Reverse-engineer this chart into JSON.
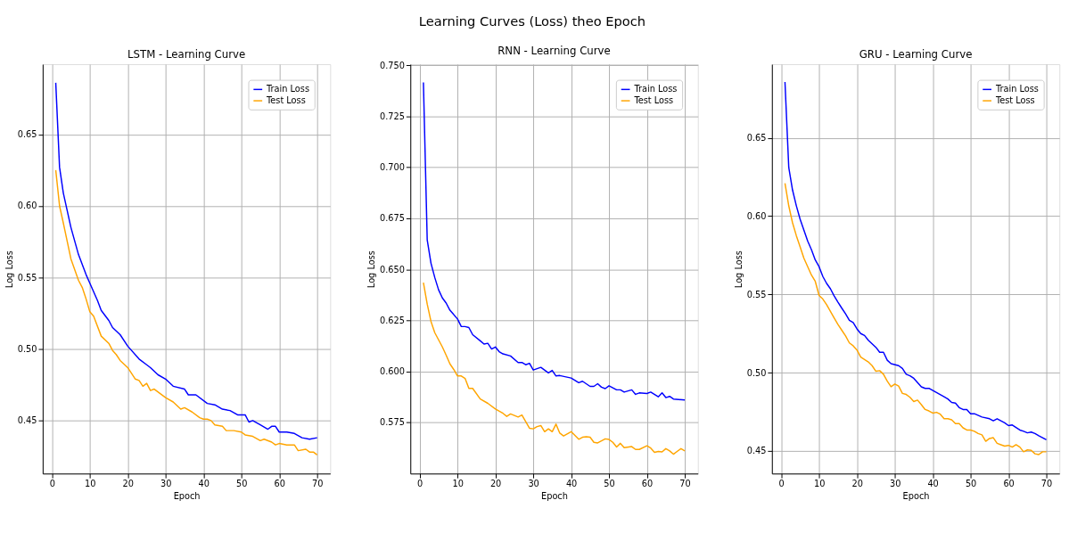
{
  "chart_data": [
    {
      "type": "line",
      "title": "LSTM - Learning Curve",
      "annotations": [
        "Learning Curves (Loss) theo Epoch"
      ],
      "xlabel": "Epoch",
      "ylabel": "Log Loss",
      "xlim": [
        -2.45,
        73.45
      ],
      "ylim": [
        0.413,
        0.699
      ],
      "xticks": [
        0,
        10,
        20,
        30,
        40,
        50,
        60,
        70
      ],
      "yticks": [
        0.45,
        {
          "value": 0.5,
          "label": "0.50"
        },
        0.55,
        {
          "value": 0.6,
          "label": "0.60"
        },
        0.65
      ],
      "grid": true,
      "legend": "top right",
      "marker": "none",
      "line_style": "solid",
      "series": [
        {
          "name": "Train Loss",
          "color": "#0000ff",
          "x": [
            1,
            2,
            3,
            5,
            7,
            9,
            10,
            12,
            13,
            15,
            16,
            18,
            20,
            23,
            25,
            26,
            28,
            30,
            32,
            35,
            36,
            38,
            41,
            43,
            45,
            47,
            49,
            51,
            52,
            53,
            55,
            57,
            58,
            59,
            60,
            62,
            64,
            66,
            68,
            70
          ],
          "values": [
            0.686,
            0.627,
            0.609,
            0.585,
            0.566,
            0.552,
            0.546,
            0.534,
            0.527,
            0.52,
            0.515,
            0.51,
            0.502,
            0.493,
            0.489,
            0.487,
            0.482,
            0.479,
            0.474,
            0.472,
            0.468,
            0.468,
            0.462,
            0.461,
            0.458,
            0.457,
            0.454,
            0.454,
            0.449,
            0.45,
            0.447,
            0.444,
            0.446,
            0.446,
            0.442,
            0.442,
            0.441,
            0.438,
            0.437,
            0.438
          ]
        },
        {
          "name": "Test Loss",
          "color": "#ffa500",
          "x": [
            1,
            2,
            3,
            5,
            7,
            8,
            9,
            10,
            11,
            13,
            15,
            16,
            17,
            18,
            20,
            22,
            23,
            24,
            25,
            26,
            27,
            30,
            32,
            34,
            35,
            37,
            39,
            40,
            41,
            42,
            43,
            45,
            46,
            48,
            50,
            51,
            53,
            55,
            56,
            58,
            59,
            60,
            62,
            64,
            65,
            67,
            68,
            69,
            70
          ],
          "values": [
            0.625,
            0.6,
            0.588,
            0.563,
            0.548,
            0.543,
            0.535,
            0.526,
            0.523,
            0.509,
            0.504,
            0.499,
            0.496,
            0.492,
            0.487,
            0.479,
            0.478,
            0.474,
            0.476,
            0.471,
            0.472,
            0.466,
            0.463,
            0.458,
            0.459,
            0.456,
            0.452,
            0.451,
            0.451,
            0.45,
            0.447,
            0.446,
            0.443,
            0.443,
            0.442,
            0.44,
            0.439,
            0.436,
            0.437,
            0.435,
            0.433,
            0.434,
            0.433,
            0.433,
            0.429,
            0.43,
            0.428,
            0.428,
            0.426
          ]
        }
      ]
    },
    {
      "type": "line",
      "title": "RNN - Learning Curve",
      "xlabel": "Epoch",
      "ylabel": "Log Loss",
      "xlim": [
        -2.45,
        73.45
      ],
      "ylim": [
        0.55,
        0.7505
      ],
      "xticks": [
        0,
        10,
        20,
        30,
        40,
        50,
        60,
        70
      ],
      "yticks": [
        0.575,
        {
          "value": 0.6,
          "label": "0.600"
        },
        0.625,
        {
          "value": 0.65,
          "label": "0.650"
        },
        0.675,
        {
          "value": 0.7,
          "label": "0.700"
        },
        0.725,
        {
          "value": 0.75,
          "label": "0.750"
        }
      ],
      "grid": true,
      "legend": "top right",
      "marker": "none",
      "line_style": "solid",
      "series": [
        {
          "name": "Train Loss",
          "color": "#0000ff",
          "x": [
            1,
            2,
            3,
            4,
            5,
            6,
            7,
            8,
            10,
            11,
            12,
            13,
            14,
            16,
            17,
            18,
            19,
            20,
            21,
            22,
            24,
            26,
            27,
            28,
            29,
            30,
            32,
            34,
            35,
            36,
            37,
            40,
            42,
            43,
            45,
            46,
            47,
            48,
            49,
            50,
            52,
            53,
            54,
            56,
            57,
            58,
            60,
            61,
            63,
            64,
            65,
            66,
            67,
            70
          ],
          "values": [
            0.7416,
            0.6645,
            0.653,
            0.646,
            0.64,
            0.636,
            0.6335,
            0.63,
            0.6257,
            0.622,
            0.622,
            0.6215,
            0.618,
            0.615,
            0.6134,
            0.6138,
            0.611,
            0.612,
            0.6097,
            0.6086,
            0.6076,
            0.6044,
            0.6044,
            0.6033,
            0.604,
            0.6007,
            0.602,
            0.5993,
            0.6005,
            0.5978,
            0.598,
            0.5968,
            0.5945,
            0.5952,
            0.5927,
            0.5927,
            0.594,
            0.5923,
            0.5916,
            0.593,
            0.591,
            0.591,
            0.5899,
            0.591,
            0.5888,
            0.5895,
            0.5892,
            0.5899,
            0.5876,
            0.5895,
            0.5872,
            0.5878,
            0.5865,
            0.586
          ]
        },
        {
          "name": "Test Loss",
          "color": "#ffa500",
          "x": [
            1,
            2,
            3,
            4,
            6,
            7,
            8,
            9,
            10,
            11,
            12,
            13,
            14,
            16,
            18,
            20,
            22,
            23,
            24,
            26,
            27,
            29,
            30,
            31,
            32,
            33,
            34,
            35,
            36,
            37,
            38,
            40,
            42,
            43,
            44,
            45,
            46,
            47,
            49,
            50,
            51,
            52,
            53,
            54,
            56,
            57,
            58,
            60,
            61,
            62,
            63,
            64,
            65,
            66,
            67,
            69,
            70
          ],
          "values": [
            0.6435,
            0.633,
            0.6245,
            0.619,
            0.612,
            0.608,
            0.6037,
            0.601,
            0.5978,
            0.5978,
            0.5966,
            0.5917,
            0.5917,
            0.5865,
            0.5844,
            0.5816,
            0.5795,
            0.578,
            0.5792,
            0.5777,
            0.5787,
            0.5722,
            0.5719,
            0.573,
            0.5735,
            0.5705,
            0.5719,
            0.5705,
            0.5742,
            0.5698,
            0.5684,
            0.5705,
            0.5668,
            0.5678,
            0.568,
            0.5678,
            0.5653,
            0.565,
            0.567,
            0.5667,
            0.5653,
            0.563,
            0.5648,
            0.5627,
            0.5632,
            0.5618,
            0.5618,
            0.5636,
            0.5625,
            0.5604,
            0.5608,
            0.5606,
            0.5622,
            0.5611,
            0.5595,
            0.5622,
            0.5611
          ]
        }
      ]
    },
    {
      "type": "line",
      "title": "GRU - Learning Curve",
      "xlabel": "Epoch",
      "ylabel": "Log Loss",
      "xlim": [
        -2.45,
        73.45
      ],
      "ylim": [
        0.4356,
        0.697
      ],
      "xticks": [
        0,
        10,
        20,
        30,
        40,
        50,
        60,
        70
      ],
      "yticks": [
        0.45,
        {
          "value": 0.5,
          "label": "0.50"
        },
        0.55,
        {
          "value": 0.6,
          "label": "0.60"
        },
        0.65
      ],
      "grid": true,
      "legend": "top right",
      "marker": "none",
      "line_style": "solid",
      "series": [
        {
          "name": "Train Loss",
          "color": "#0000ff",
          "x": [
            1,
            2,
            3,
            4,
            5,
            6,
            7,
            8,
            9,
            10,
            11,
            12,
            13,
            14,
            15,
            16,
            17,
            18,
            19,
            20,
            21,
            22,
            23,
            25,
            26,
            27,
            28,
            29,
            31,
            32,
            33,
            34,
            35,
            37,
            38,
            39,
            41,
            43,
            44,
            45,
            46,
            47,
            48,
            49,
            50,
            51,
            53,
            55,
            56,
            57,
            59,
            60,
            61,
            63,
            64,
            65,
            66,
            67,
            68,
            69,
            70
          ],
          "values": [
            0.6856,
            0.631,
            0.6166,
            0.6066,
            0.598,
            0.591,
            0.584,
            0.5785,
            0.572,
            0.5677,
            0.5614,
            0.557,
            0.5536,
            0.549,
            0.545,
            0.5412,
            0.5376,
            0.5334,
            0.532,
            0.528,
            0.525,
            0.5238,
            0.5207,
            0.5162,
            0.513,
            0.513,
            0.508,
            0.5058,
            0.5045,
            0.5027,
            0.499,
            0.498,
            0.4964,
            0.491,
            0.49,
            0.49,
            0.4873,
            0.4846,
            0.4832,
            0.481,
            0.4806,
            0.4777,
            0.4765,
            0.4765,
            0.4738,
            0.4738,
            0.4717,
            0.4706,
            0.4693,
            0.4706,
            0.468,
            0.4662,
            0.4666,
            0.4634,
            0.4626,
            0.4616,
            0.4621,
            0.4612,
            0.4598,
            0.4585,
            0.4572
          ]
        },
        {
          "name": "Test Loss",
          "color": "#ffa500",
          "x": [
            1,
            2,
            3,
            4,
            5,
            6,
            7,
            8,
            9,
            10,
            11,
            12,
            13,
            14,
            15,
            16,
            17,
            18,
            19,
            20,
            21,
            23,
            24,
            25,
            26,
            27,
            28,
            29,
            30,
            31,
            32,
            33,
            34,
            35,
            36,
            37,
            38,
            39,
            40,
            41,
            42,
            43,
            44,
            45,
            46,
            47,
            48,
            49,
            50,
            51,
            52,
            53,
            54,
            55,
            56,
            57,
            58,
            59,
            60,
            61,
            62,
            63,
            64,
            65,
            66,
            67,
            68,
            69,
            70
          ],
          "values": [
            0.621,
            0.6065,
            0.5957,
            0.5875,
            0.5803,
            0.5731,
            0.5677,
            0.5623,
            0.5583,
            0.5493,
            0.547,
            0.5434,
            0.5392,
            0.5349,
            0.5307,
            0.5271,
            0.5235,
            0.519,
            0.5172,
            0.5145,
            0.51,
            0.5069,
            0.5045,
            0.5009,
            0.5013,
            0.499,
            0.4946,
            0.491,
            0.4928,
            0.4915,
            0.4868,
            0.4861,
            0.4843,
            0.4816,
            0.4825,
            0.4796,
            0.4765,
            0.4756,
            0.4742,
            0.4747,
            0.4735,
            0.4706,
            0.4706,
            0.4699,
            0.4675,
            0.4675,
            0.4648,
            0.4634,
            0.4634,
            0.4626,
            0.4612,
            0.4603,
            0.4562,
            0.458,
            0.4585,
            0.4549,
            0.454,
            0.4531,
            0.4536,
            0.4525,
            0.454,
            0.4525,
            0.4495,
            0.4507,
            0.4504,
            0.4482,
            0.4477,
            0.4495,
            0.4495
          ]
        }
      ]
    }
  ]
}
